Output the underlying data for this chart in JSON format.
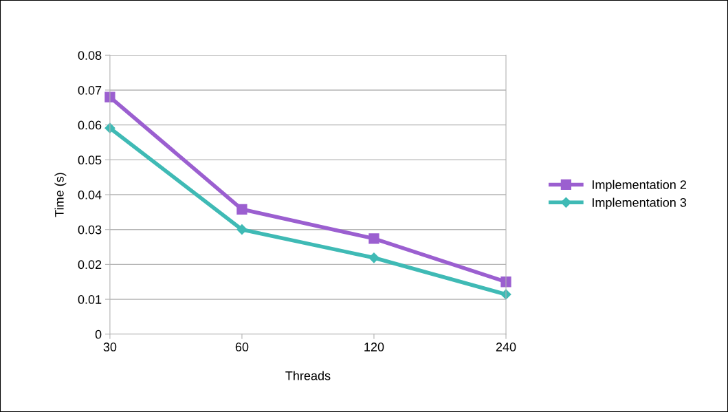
{
  "chart_data": {
    "type": "line",
    "xlabel": "Threads",
    "ylabel": "Time (s)",
    "categories": [
      "30",
      "60",
      "120",
      "240"
    ],
    "series": [
      {
        "name": "Implementation 2",
        "color": "#9b5fd0",
        "marker": "square",
        "values": [
          0.068,
          0.0358,
          0.0274,
          0.015
        ]
      },
      {
        "name": "Implementation 3",
        "color": "#3fbab5",
        "marker": "diamond",
        "values": [
          0.0591,
          0.03,
          0.0219,
          0.0114
        ]
      }
    ],
    "ylim": [
      0,
      0.08
    ],
    "yticks": [
      {
        "value": 0,
        "label": "0"
      },
      0.01,
      0.02,
      0.03,
      0.04,
      0.05,
      0.06,
      0.07,
      0.08
    ],
    "grid": "y",
    "legend": "right"
  }
}
